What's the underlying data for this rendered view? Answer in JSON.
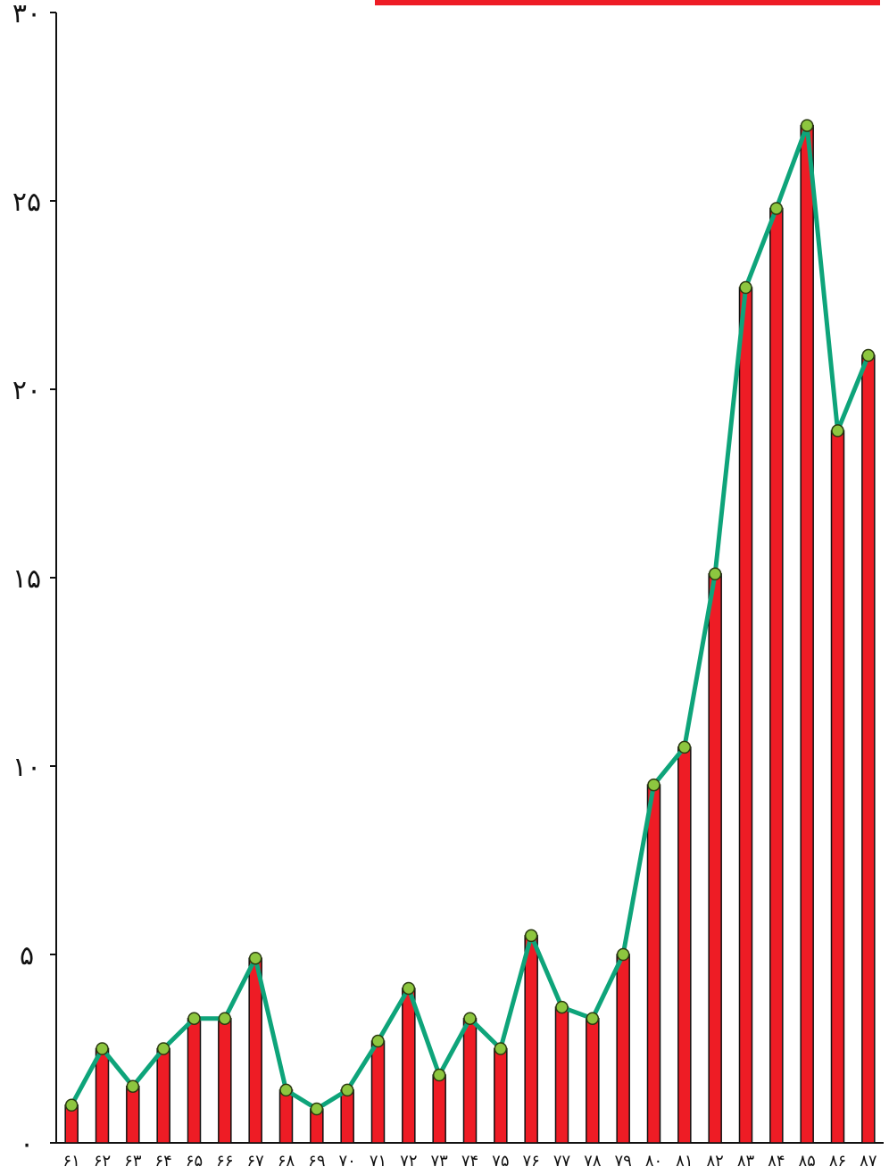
{
  "chart_data": {
    "type": "bar",
    "overlay": "line",
    "categories": [
      "۶۱",
      "۶۲",
      "۶۳",
      "۶۴",
      "۶۵",
      "۶۶",
      "۶۷",
      "۶۸",
      "۶۹",
      "۷۰",
      "۷۱",
      "۷۲",
      "۷۳",
      "۷۴",
      "۷۵",
      "۷۶",
      "۷۷",
      "۷۸",
      "۷۹",
      "۸۰",
      "۸۱",
      "۸۲",
      "۸۳",
      "۸۴",
      "۸۵",
      "۸۶",
      "۸۷"
    ],
    "values": [
      1.0,
      2.5,
      1.5,
      2.5,
      3.3,
      3.3,
      4.9,
      1.4,
      0.9,
      1.4,
      2.7,
      4.1,
      1.8,
      3.3,
      2.5,
      5.5,
      3.6,
      3.3,
      5.0,
      9.5,
      10.5,
      15.1,
      22.7,
      24.8,
      27.0,
      18.9,
      20.9
    ],
    "ylim": [
      0,
      30
    ],
    "yticks": [
      0,
      5,
      10,
      15,
      20,
      25,
      30
    ],
    "ytick_labels": [
      "۰",
      "۵",
      "۱۰",
      "۱۵",
      "۲۰",
      "۲۵",
      "۳۰"
    ],
    "grid": false,
    "colors": {
      "bar": "#ee1c25",
      "bar_edge": "#111111",
      "line": "#0ea47a",
      "marker": "#8dc63f",
      "header_bar": "#ee1c25"
    }
  }
}
